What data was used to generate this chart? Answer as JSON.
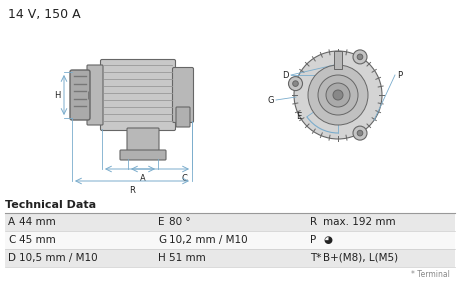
{
  "title": "14 V, 150 A",
  "title_fontsize": 9,
  "bg_color": "#ffffff",
  "table_header": "Technical Data",
  "table_bg_odd": "#e8e8e8",
  "table_bg_even": "#f8f8f8",
  "rows": [
    [
      "A",
      "44 mm",
      "E",
      "80 °",
      "R",
      "max. 192 mm"
    ],
    [
      "C",
      "45 mm",
      "G",
      "10,2 mm / M10",
      "P",
      "◕"
    ],
    [
      "D",
      "10,5 mm / M10",
      "H",
      "51 mm",
      "T*",
      "B+(M8), L(M5)"
    ]
  ],
  "footnote": "* Terminal",
  "dim_color": "#7aaccc",
  "text_color": "#222222",
  "dark_color": "#666666",
  "body_color": "#c8c8c8",
  "body_color2": "#b8b8b8",
  "pulley_color": "#aaaaaa",
  "table_line_color": "#cccccc",
  "header_line_color": "#999999"
}
